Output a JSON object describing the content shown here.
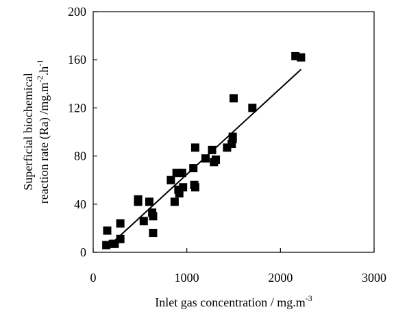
{
  "chart_data": {
    "type": "scatter",
    "title": "",
    "xlabel": {
      "text": "Inlet gas concentration / mg.m",
      "sup": "-3"
    },
    "ylabel": {
      "line1": "Superficial biochemical",
      "line2_main": "reaction rate (Ra) /mg.m",
      "line2_sup1": "-2",
      "line2_mid": ".h",
      "line2_sup2": "-1"
    },
    "xlim": [
      0,
      3000
    ],
    "ylim": [
      0,
      200
    ],
    "x_ticks": [
      0,
      1000,
      2000,
      3000
    ],
    "y_ticks": [
      0,
      40,
      80,
      120,
      160,
      200
    ],
    "grid": false,
    "legend": "none",
    "marker": "filled-square",
    "color": "#000000",
    "series": [
      {
        "points": [
          [
            150,
            18
          ],
          [
            140,
            6
          ],
          [
            210,
            7
          ],
          [
            230,
            7
          ],
          [
            290,
            11
          ],
          [
            290,
            24
          ],
          [
            480,
            42
          ],
          [
            480,
            44
          ],
          [
            540,
            26
          ],
          [
            600,
            42
          ],
          [
            630,
            33
          ],
          [
            640,
            30
          ],
          [
            640,
            16
          ],
          [
            830,
            60
          ],
          [
            870,
            42
          ],
          [
            890,
            66
          ],
          [
            910,
            52
          ],
          [
            920,
            49
          ],
          [
            950,
            66
          ],
          [
            960,
            54
          ],
          [
            1070,
            70
          ],
          [
            1080,
            56
          ],
          [
            1090,
            54
          ],
          [
            1090,
            87
          ],
          [
            1200,
            78
          ],
          [
            1270,
            85
          ],
          [
            1290,
            75
          ],
          [
            1310,
            77
          ],
          [
            1310,
            77
          ],
          [
            1430,
            87
          ],
          [
            1480,
            90
          ],
          [
            1490,
            94
          ],
          [
            1490,
            96
          ],
          [
            1500,
            128
          ],
          [
            1700,
            120
          ],
          [
            2160,
            163
          ],
          [
            2220,
            162
          ]
        ]
      }
    ],
    "trendline": {
      "x": [
        150,
        2220
      ],
      "y": [
        4,
        152
      ]
    }
  }
}
